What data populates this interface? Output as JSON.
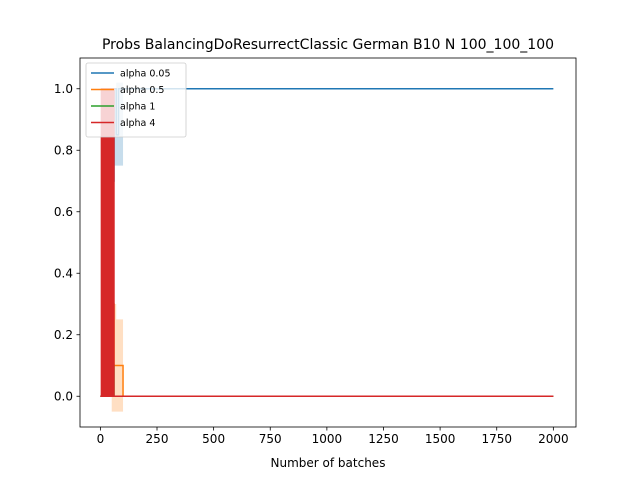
{
  "chart_data": {
    "type": "line",
    "title": "Probs BalancingDoResurrectClassic German B10 N 100_100_100",
    "xlabel": "Number of batches",
    "ylabel": "",
    "xlim": [
      -90,
      2100
    ],
    "ylim": [
      -0.1,
      1.1
    ],
    "xticks": [
      0,
      250,
      500,
      750,
      1000,
      1250,
      1500,
      1750,
      2000
    ],
    "xtick_labels": [
      "0",
      "250",
      "500",
      "750",
      "1000",
      "1250",
      "1500",
      "1750",
      "2000"
    ],
    "yticks": [
      0.0,
      0.2,
      0.4,
      0.6,
      0.8,
      1.0
    ],
    "ytick_labels": [
      "0.0",
      "0.2",
      "0.4",
      "0.6",
      "0.8",
      "1.0"
    ],
    "grid": false,
    "legend_position": "top-left",
    "series": [
      {
        "name": "alpha 0.05",
        "color": "#1f77b4",
        "x": [
          0,
          10,
          20,
          30,
          40,
          50,
          60,
          70,
          80,
          90,
          100,
          2000
        ],
        "y": [
          0,
          0.2,
          0.9,
          0.5,
          1.0,
          0.7,
          1.0,
          0.85,
          1.0,
          1.0,
          1.0,
          1.0
        ],
        "band_x": [
          50,
          60,
          70,
          80,
          90,
          100
        ],
        "band_lower": [
          0.7,
          0.75,
          0.75,
          0.75,
          0.75,
          1.0
        ],
        "band_upper": [
          1.0,
          1.0,
          1.02,
          1.02,
          1.02,
          1.0
        ]
      },
      {
        "name": "alpha 0.5",
        "color": "#ff7f0e",
        "x": [
          0,
          10,
          20,
          30,
          40,
          50,
          60,
          70,
          80,
          90,
          100,
          2000
        ],
        "y": [
          0,
          1.0,
          0.3,
          1.0,
          0.4,
          0.3,
          0.1,
          0.1,
          0.1,
          0.1,
          0.0,
          0.0
        ],
        "band_x": [
          50,
          60,
          70,
          80,
          90,
          100
        ],
        "band_lower": [
          -0.05,
          -0.05,
          -0.05,
          -0.05,
          -0.05,
          0.0
        ],
        "band_upper": [
          0.35,
          0.3,
          0.25,
          0.25,
          0.25,
          0.0
        ]
      },
      {
        "name": "alpha 1",
        "color": "#2ca02c",
        "x": [
          0,
          10,
          20,
          30,
          40,
          50,
          60,
          100,
          2000
        ],
        "y": [
          0,
          1.0,
          0.1,
          1.0,
          0.2,
          0.1,
          0.0,
          0.0,
          0.0
        ]
      },
      {
        "name": "alpha 4",
        "color": "#d62728",
        "x": [
          0,
          5,
          10,
          15,
          20,
          25,
          30,
          35,
          40,
          45,
          50,
          55,
          60,
          2000
        ],
        "y": [
          0,
          1.0,
          0.0,
          1.0,
          0.0,
          1.0,
          0.0,
          1.0,
          0.0,
          1.0,
          0.0,
          1.0,
          0.0,
          0.0
        ],
        "band_x": [
          0,
          10,
          20,
          30,
          40,
          50,
          60
        ],
        "band_lower": [
          0.0,
          0.0,
          0.0,
          0.0,
          0.0,
          0.0,
          0.0
        ],
        "band_upper": [
          1.0,
          1.0,
          1.0,
          1.0,
          1.0,
          1.0,
          0.0
        ]
      }
    ]
  }
}
